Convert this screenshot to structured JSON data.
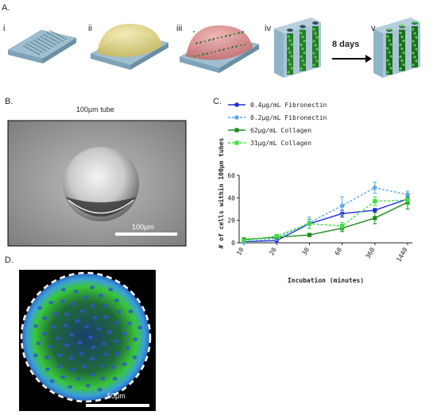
{
  "panel_labels": {
    "A": "A.",
    "B": "B.",
    "C": "C.",
    "D": "D."
  },
  "panel_a": {
    "steps": [
      "i",
      "ii",
      "iii",
      "iv",
      "v"
    ],
    "arrow_label": "8 days"
  },
  "panel_b": {
    "title": "100µm tube",
    "scale_bar_label": "100µm"
  },
  "panel_d": {
    "scale_bar_label": "50µm"
  },
  "colors": {
    "fibronectin_high": "#1c2fd1",
    "fibronectin_low": "#5fa8e8",
    "collagen_high": "#1e8a1e",
    "collagen_low": "#3fe03f",
    "substrate": "#8fb3c7",
    "dome_yellow": "#e8dc8a",
    "dome_red": "#e08a8a"
  },
  "chart_data": {
    "type": "line",
    "xlabel": "Incubation (minutes)",
    "ylabel": "# of cells within 100µm tubes",
    "categories": [
      "10",
      "20",
      "30",
      "60",
      "360",
      "1440"
    ],
    "ylim": [
      0,
      60
    ],
    "yticks": [
      "0",
      "20",
      "40",
      "60"
    ],
    "legend_position": "top-left",
    "series": [
      {
        "name": "0.4µg/mL Fibronectin",
        "style": "solid",
        "marker": "circle",
        "color": "#1c2fd1",
        "values": [
          1,
          2,
          17,
          26,
          29,
          39
        ],
        "errors": [
          0.5,
          2,
          4,
          3,
          1.5,
          2
        ]
      },
      {
        "name": "0.2µg/mL Fibronectin",
        "style": "dashed",
        "marker": "circle",
        "color": "#5fa8e8",
        "values": [
          1,
          4,
          18,
          33,
          49,
          43
        ],
        "errors": [
          0.5,
          2,
          5,
          8,
          5,
          3
        ]
      },
      {
        "name": "62µg/mL Collagen",
        "style": "solid",
        "marker": "square",
        "color": "#1e8a1e",
        "values": [
          3,
          5,
          7,
          13,
          22,
          36
        ],
        "errors": [
          1,
          1,
          1.5,
          3,
          5,
          6
        ]
      },
      {
        "name": "31µg/mL Collagen",
        "style": "dashed",
        "marker": "square",
        "color": "#3fe03f",
        "values": [
          2,
          6,
          17,
          15,
          37,
          38
        ],
        "errors": [
          1,
          1.5,
          4,
          3,
          4,
          4
        ]
      }
    ]
  }
}
